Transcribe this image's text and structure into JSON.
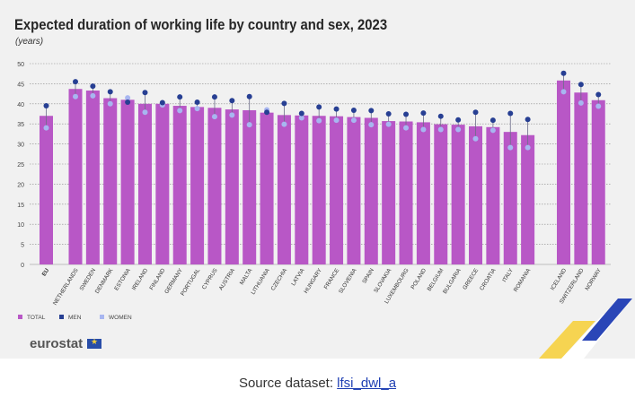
{
  "title": "Expected duration of working life by country and sex, 2023",
  "subtitle": "(years)",
  "brand": "eurostat",
  "source": {
    "prefix": "Source dataset: ",
    "link_text": "lfsi_dwl_a"
  },
  "colors": {
    "total": "#b857c6",
    "men": "#273f93",
    "women": "#a8b6f0",
    "panel": "#f1f1f1"
  },
  "chart_data": {
    "type": "bar",
    "title": "Expected duration of working life by country and sex, 2023",
    "ylabel": "(years)",
    "ylim": [
      0,
      50
    ],
    "yticks": [
      0,
      5,
      10,
      15,
      20,
      25,
      30,
      35,
      40,
      45,
      50
    ],
    "legend": "bottom-left",
    "grid": true,
    "categories": [
      "EU",
      "NETHERLANDS",
      "SWEDEN",
      "DENMARK",
      "ESTONIA",
      "IRELAND",
      "FINLAND",
      "GERMANY",
      "PORTUGAL",
      "CYPRUS",
      "AUSTRIA",
      "MALTA",
      "LITHUANIA",
      "CZECHIA",
      "LATVIA",
      "HUNGARY",
      "FRANCE",
      "SLOVENIA",
      "SPAIN",
      "SLOVAKIA",
      "LUXEMBOURG",
      "POLAND",
      "BELGIUM",
      "BULGARIA",
      "GREECE",
      "CROATIA",
      "ITALY",
      "ROMANIA",
      "ICELAND",
      "SWITZERLAND",
      "NORWAY"
    ],
    "series": [
      {
        "name": "TOTAL",
        "values": [
          37.0,
          43.7,
          43.3,
          41.4,
          41.0,
          40.0,
          40.0,
          39.5,
          39.2,
          39.0,
          38.6,
          38.4,
          37.8,
          37.2,
          37.1,
          37.0,
          36.9,
          36.7,
          36.5,
          35.7,
          35.6,
          35.4,
          34.9,
          34.8,
          34.4,
          34.2,
          33.0,
          32.2,
          45.8,
          42.8,
          40.9
        ]
      },
      {
        "name": "MEN",
        "values": [
          39.5,
          45.5,
          44.4,
          43.0,
          40.4,
          42.8,
          40.3,
          41.7,
          40.4,
          41.7,
          40.8,
          41.8,
          37.9,
          40.1,
          37.6,
          39.2,
          38.7,
          38.4,
          38.3,
          37.5,
          37.4,
          37.7,
          36.9,
          36.0,
          37.9,
          35.9,
          37.6,
          36.1,
          47.6,
          44.8,
          42.3
        ]
      },
      {
        "name": "WOMEN",
        "values": [
          34.0,
          41.8,
          42.0,
          40.0,
          41.5,
          37.9,
          39.7,
          38.3,
          38.8,
          36.8,
          37.2,
          34.8,
          38.5,
          34.9,
          36.5,
          35.8,
          35.9,
          35.9,
          34.8,
          34.9,
          34.0,
          33.6,
          33.6,
          33.6,
          31.3,
          33.4,
          29.1,
          29.1,
          43.0,
          40.2,
          39.4
        ]
      }
    ]
  }
}
